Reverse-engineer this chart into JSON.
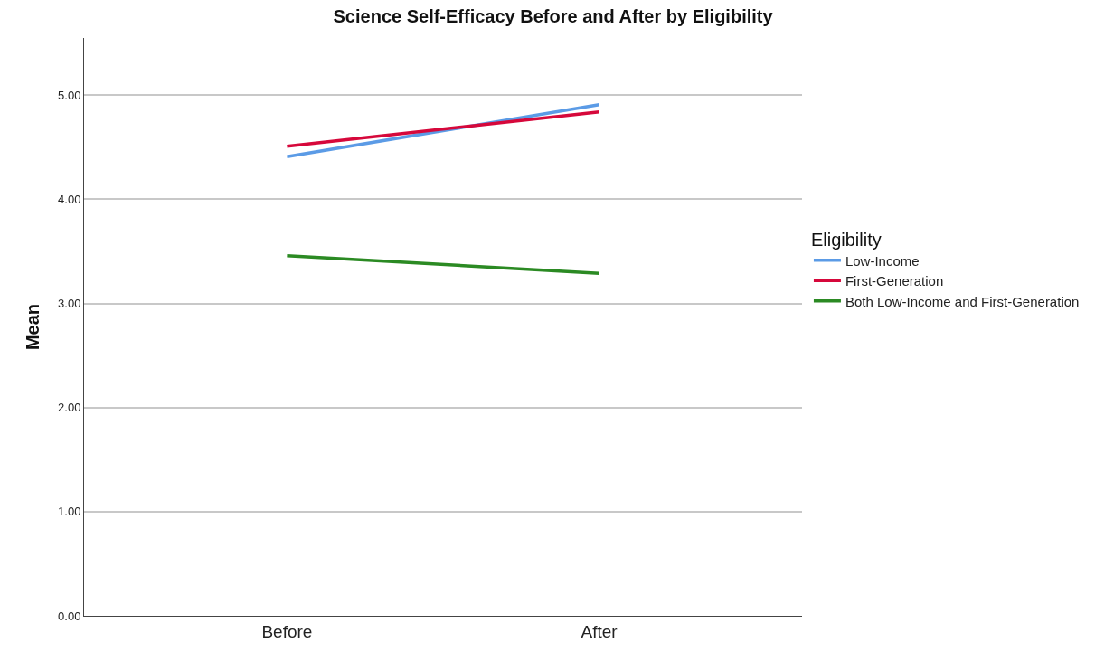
{
  "chart_data": {
    "type": "line",
    "title": "Science Self-Efficacy Before and After by Eligibility",
    "ylabel": "Mean",
    "legend_title": "Eligibility",
    "categories": [
      "Before",
      "After"
    ],
    "series": [
      {
        "name": "Low-Income",
        "color": "#5b9be6",
        "values": [
          4.41,
          4.91
        ]
      },
      {
        "name": "First-Generation",
        "color": "#d6083b",
        "values": [
          4.51,
          4.84
        ]
      },
      {
        "name": "Both Low-Income and First-Generation",
        "color": "#2b8a23",
        "values": [
          3.46,
          3.29
        ]
      }
    ],
    "ylim": [
      0,
      5.55
    ],
    "yticks": [
      {
        "value": 0,
        "label": "0.00"
      },
      {
        "value": 1,
        "label": "1.00"
      },
      {
        "value": 2,
        "label": "2.00"
      },
      {
        "value": 3,
        "label": "3.00"
      },
      {
        "value": 4,
        "label": "4.00"
      },
      {
        "value": 5,
        "label": "5.00"
      }
    ],
    "grid": "y",
    "legend": "right",
    "marker": "none",
    "line_style": "solid"
  }
}
